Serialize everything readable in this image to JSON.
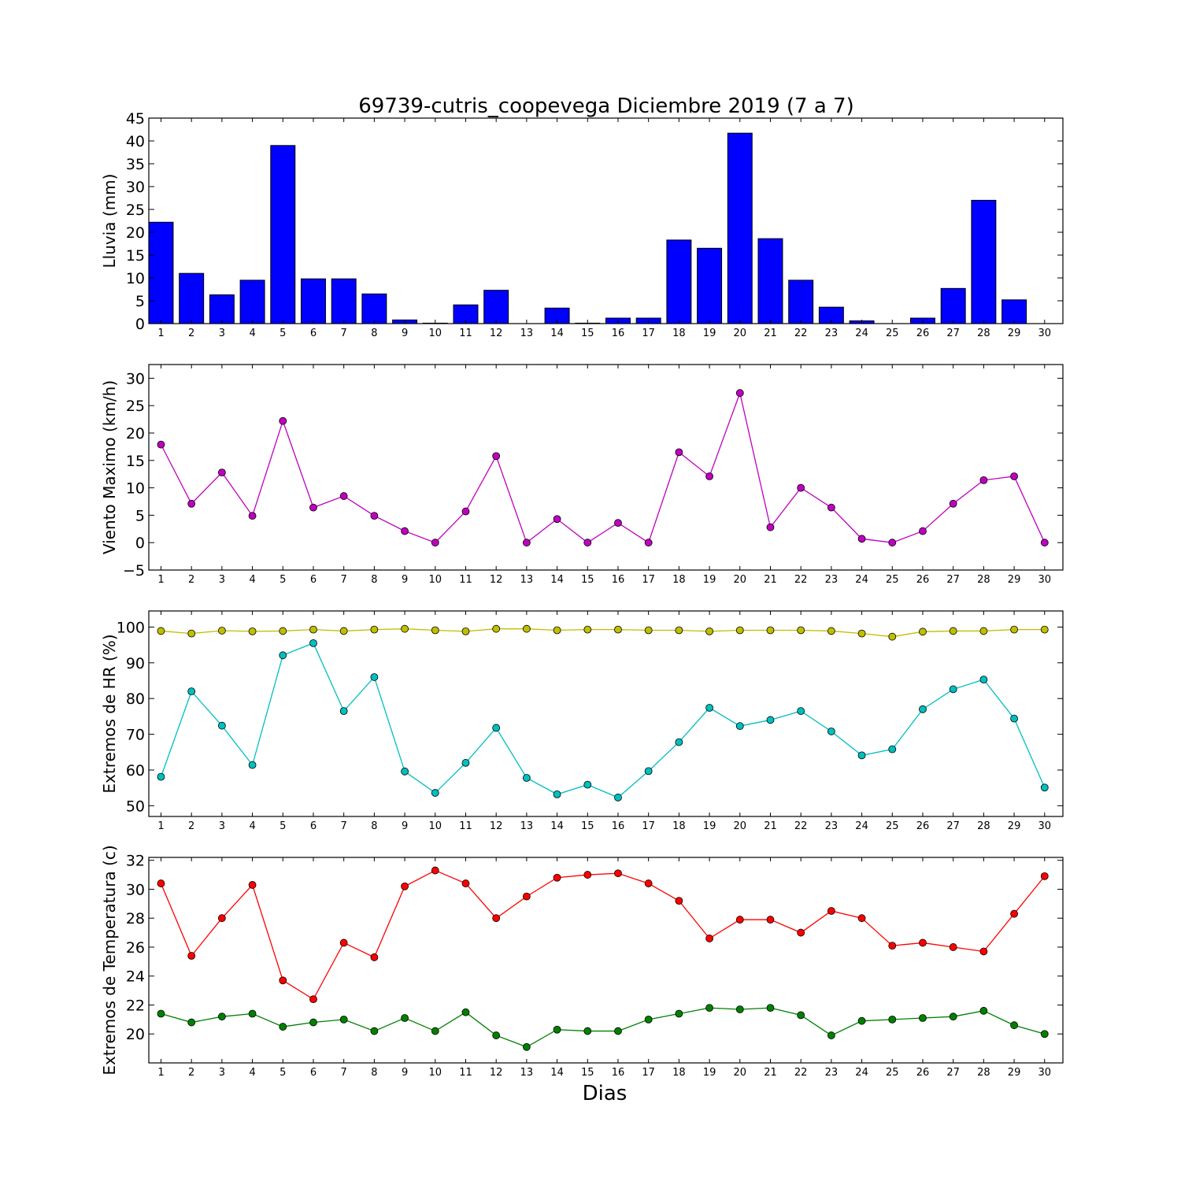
{
  "title": "69739-cutris_coopevega Diciembre 2019  (7 a 7)",
  "xlabel": "Dias",
  "chart_data": [
    {
      "type": "bar",
      "ylabel": "Lluvia (mm)",
      "ylim": [
        0,
        45
      ],
      "yticks": [
        0,
        5,
        10,
        15,
        20,
        25,
        30,
        35,
        40,
        45
      ],
      "x": [
        1,
        2,
        3,
        4,
        5,
        6,
        7,
        8,
        9,
        10,
        11,
        12,
        13,
        14,
        15,
        16,
        17,
        18,
        19,
        20,
        21,
        22,
        23,
        24,
        25,
        26,
        27,
        28,
        29,
        30
      ],
      "series": [
        {
          "color": "#0000ff",
          "values": [
            22.2,
            11.0,
            6.3,
            9.5,
            39.0,
            9.8,
            9.8,
            6.5,
            0.8,
            0.1,
            4.1,
            7.3,
            0.0,
            3.4,
            0.1,
            1.2,
            1.2,
            18.3,
            16.5,
            41.7,
            18.6,
            9.5,
            3.6,
            0.6,
            0.0,
            1.2,
            7.7,
            27.0,
            5.2,
            0.0
          ]
        }
      ]
    },
    {
      "type": "line",
      "ylabel": "Viento Maximo (km/h)",
      "ylim": [
        -5,
        32.5
      ],
      "yticks": [
        -5,
        0,
        5,
        10,
        15,
        20,
        25,
        30
      ],
      "x": [
        1,
        2,
        3,
        4,
        5,
        6,
        7,
        8,
        9,
        10,
        11,
        12,
        13,
        14,
        15,
        16,
        17,
        18,
        19,
        20,
        21,
        22,
        23,
        24,
        25,
        26,
        27,
        28,
        29,
        30
      ],
      "series": [
        {
          "color": "#bf00bf",
          "values": [
            17.9,
            7.1,
            12.8,
            4.9,
            22.2,
            6.4,
            8.5,
            4.9,
            2.1,
            0.0,
            5.7,
            15.8,
            0.0,
            4.3,
            0.0,
            3.6,
            0.0,
            16.5,
            12.1,
            27.3,
            2.8,
            10.0,
            6.4,
            0.7,
            0.0,
            2.1,
            7.1,
            11.4,
            12.1,
            0.0
          ]
        }
      ]
    },
    {
      "type": "line",
      "ylabel": "Extremos de HR (%)",
      "ylim": [
        47,
        104.5
      ],
      "yticks": [
        50,
        60,
        70,
        80,
        90,
        100
      ],
      "x": [
        1,
        2,
        3,
        4,
        5,
        6,
        7,
        8,
        9,
        10,
        11,
        12,
        13,
        14,
        15,
        16,
        17,
        18,
        19,
        20,
        21,
        22,
        23,
        24,
        25,
        26,
        27,
        28,
        29,
        30
      ],
      "series": [
        {
          "color": "#bfbf00",
          "values": [
            98.9,
            98.2,
            99.0,
            98.8,
            98.9,
            99.3,
            98.9,
            99.3,
            99.5,
            99.1,
            98.8,
            99.5,
            99.5,
            99.1,
            99.3,
            99.3,
            99.1,
            99.1,
            98.8,
            99.1,
            99.1,
            99.1,
            98.9,
            98.2,
            97.3,
            98.7,
            98.9,
            98.9,
            99.3,
            99.3
          ]
        },
        {
          "color": "#00bfbf",
          "values": [
            58.1,
            82.0,
            72.4,
            61.4,
            92.1,
            95.5,
            76.5,
            86.0,
            59.6,
            53.6,
            62.0,
            71.8,
            57.8,
            53.2,
            55.9,
            52.3,
            59.7,
            67.8,
            77.4,
            72.3,
            74.0,
            76.5,
            70.8,
            64.1,
            65.8,
            77.0,
            82.6,
            85.3,
            74.4,
            55.1
          ]
        }
      ]
    },
    {
      "type": "line",
      "ylabel": "Extremos de Temperatura (c)",
      "ylim": [
        18,
        32.2
      ],
      "yticks": [
        20,
        22,
        24,
        26,
        28,
        30,
        32
      ],
      "x": [
        1,
        2,
        3,
        4,
        5,
        6,
        7,
        8,
        9,
        10,
        11,
        12,
        13,
        14,
        15,
        16,
        17,
        18,
        19,
        20,
        21,
        22,
        23,
        24,
        25,
        26,
        27,
        28,
        29,
        30
      ],
      "series": [
        {
          "color": "#ff0000",
          "values": [
            30.4,
            25.4,
            28.0,
            30.3,
            23.7,
            22.4,
            26.3,
            25.3,
            30.2,
            31.3,
            30.4,
            28.0,
            29.5,
            30.8,
            31.0,
            31.1,
            30.4,
            29.2,
            26.6,
            27.9,
            27.9,
            27.0,
            28.5,
            28.0,
            26.1,
            26.3,
            26.0,
            25.7,
            28.3,
            30.9
          ]
        },
        {
          "color": "#008000",
          "values": [
            21.4,
            20.8,
            21.2,
            21.4,
            20.5,
            20.8,
            21.0,
            20.2,
            21.1,
            20.2,
            21.5,
            19.9,
            19.1,
            20.3,
            20.2,
            20.2,
            21.0,
            21.4,
            21.8,
            21.7,
            21.8,
            21.3,
            19.9,
            20.9,
            21.0,
            21.1,
            21.2,
            21.6,
            20.6,
            20.0
          ]
        }
      ]
    }
  ]
}
